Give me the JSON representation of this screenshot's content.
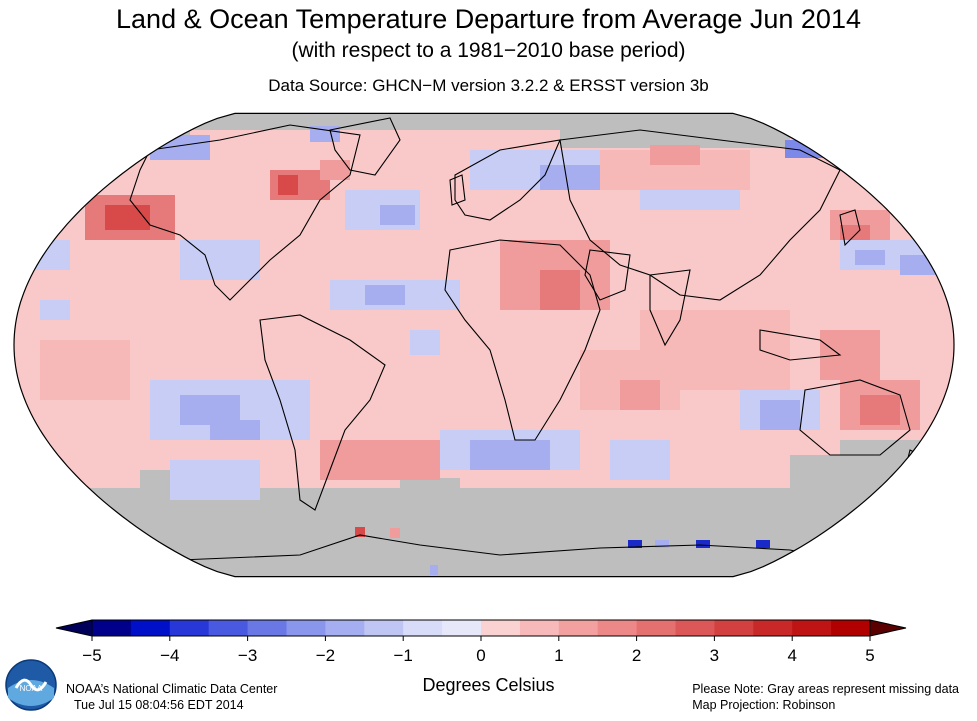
{
  "header": {
    "title": "Land & Ocean Temperature Departure from Average Jun 2014",
    "subtitle": "(with respect to a 1981−2010 base period)",
    "source": "Data Source: GHCN−M version 3.2.2 & ERSST version 3b"
  },
  "colorbar": {
    "ticks": [
      "−5",
      "−4",
      "−3",
      "−2",
      "−1",
      "0",
      "1",
      "2",
      "3",
      "4",
      "5"
    ],
    "unit_label": "Degrees Celsius",
    "colors": [
      "#00008b",
      "#0010c8",
      "#2838d8",
      "#4a5ae0",
      "#6a78e6",
      "#8a96ec",
      "#a4aef0",
      "#c0c6f4",
      "#d8dcf8",
      "#e6e8fa",
      "#fbd2d2",
      "#f7b9b9",
      "#f2a0a0",
      "#ec8888",
      "#e57070",
      "#dc5858",
      "#d24040",
      "#c82828",
      "#be1414",
      "#b00000"
    ],
    "under_color": "#00005a",
    "over_color": "#5a0000"
  },
  "map": {
    "projection": "Robinson",
    "missing_color": "#bebebe",
    "ocean_base_color": "#f9c9c9"
  },
  "footer": {
    "org": "NOAA’s National Climatic Data Center",
    "timestamp": "Tue Jul 15 08:04:56 EDT 2014",
    "note": "Please Note: Gray areas represent missing data",
    "projection_note": "Map Projection: Robinson"
  },
  "logo": {
    "text": "NOAA"
  }
}
